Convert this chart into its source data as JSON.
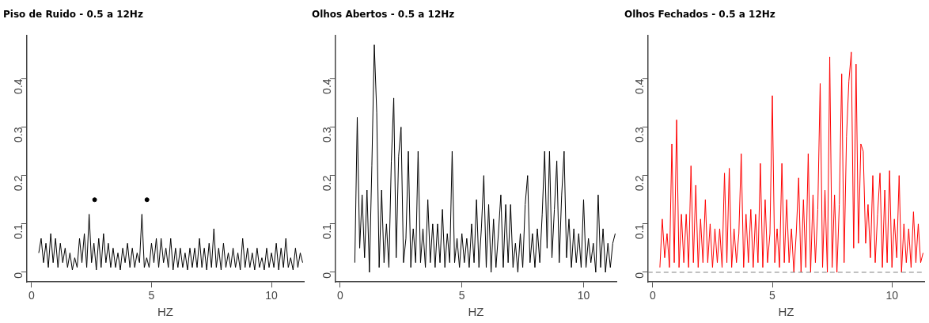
{
  "chart_data": [
    {
      "type": "line",
      "title": "Piso de Ruido - 0.5 a 12Hz",
      "xlabel": "HZ",
      "xlim": [
        -0.2,
        11.35
      ],
      "xticks": [
        0,
        5,
        10
      ],
      "ylim": [
        -0.02,
        0.49
      ],
      "yticks": [
        0.0,
        0.1,
        0.2,
        0.3,
        0.4
      ],
      "marker": "none",
      "x": [
        0.3,
        0.4,
        0.5,
        0.6,
        0.7,
        0.8,
        0.9,
        1.0,
        1.1,
        1.2,
        1.3,
        1.4,
        1.5,
        1.6,
        1.7,
        1.8,
        1.9,
        2.0,
        2.1,
        2.2,
        2.3,
        2.4,
        2.5,
        2.6,
        2.7,
        2.8,
        2.9,
        3.0,
        3.1,
        3.2,
        3.3,
        3.4,
        3.5,
        3.6,
        3.7,
        3.8,
        3.9,
        4.0,
        4.1,
        4.2,
        4.3,
        4.4,
        4.5,
        4.6,
        4.7,
        4.8,
        4.9,
        5.0,
        5.1,
        5.2,
        5.3,
        5.4,
        5.5,
        5.6,
        5.7,
        5.8,
        5.9,
        6.0,
        6.1,
        6.2,
        6.3,
        6.4,
        6.5,
        6.6,
        6.7,
        6.8,
        6.9,
        7.0,
        7.1,
        7.2,
        7.3,
        7.4,
        7.5,
        7.6,
        7.7,
        7.8,
        7.9,
        8.0,
        8.1,
        8.2,
        8.3,
        8.4,
        8.5,
        8.6,
        8.7,
        8.8,
        8.9,
        9.0,
        9.1,
        9.2,
        9.3,
        9.4,
        9.5,
        9.6,
        9.7,
        9.8,
        9.9,
        10.0,
        10.1,
        10.2,
        10.3,
        10.4,
        10.5,
        10.6,
        10.7,
        10.8,
        10.9,
        11.0,
        11.1,
        11.2,
        11.3
      ],
      "series": [
        {
          "color": "#000000",
          "values": [
            0.04,
            0.07,
            0.02,
            0.06,
            0.01,
            0.08,
            0.02,
            0.07,
            0.01,
            0.06,
            0.02,
            0.05,
            0.01,
            0.04,
            0.005,
            0.03,
            0.01,
            0.07,
            0.02,
            0.08,
            0.01,
            0.12,
            0.02,
            0.06,
            0.005,
            0.07,
            0.01,
            0.08,
            0.02,
            0.06,
            0.01,
            0.05,
            0.01,
            0.04,
            0.005,
            0.05,
            0.02,
            0.06,
            0.01,
            0.05,
            0.01,
            0.04,
            0.02,
            0.12,
            0.01,
            0.03,
            0.01,
            0.06,
            0.02,
            0.07,
            0.01,
            0.07,
            0.02,
            0.05,
            0.01,
            0.07,
            0.005,
            0.05,
            0.01,
            0.05,
            0.01,
            0.04,
            0.005,
            0.05,
            0.01,
            0.05,
            0.01,
            0.07,
            0.01,
            0.05,
            0.005,
            0.06,
            0.01,
            0.09,
            0.01,
            0.05,
            0.005,
            0.06,
            0.01,
            0.04,
            0.01,
            0.05,
            0.01,
            0.04,
            0.005,
            0.07,
            0.01,
            0.05,
            0.01,
            0.04,
            0.005,
            0.05,
            0.01,
            0.03,
            0.005,
            0.05,
            0.01,
            0.04,
            0.01,
            0.06,
            0.005,
            0.05,
            0.01,
            0.07,
            0.01,
            0.03,
            0.005,
            0.05,
            0.01,
            0.04,
            0.02
          ]
        },
        {
          "type": "scatter",
          "marker": "circle",
          "color": "#000000",
          "x": [
            2.63,
            4.81
          ],
          "values": [
            0.15,
            0.15
          ]
        }
      ]
    },
    {
      "type": "line",
      "title": "Olhos Abertos - 0.5 a 12Hz",
      "xlabel": "HZ",
      "xlim": [
        -0.2,
        11.35
      ],
      "xticks": [
        0,
        5,
        10
      ],
      "ylim": [
        -0.02,
        0.49
      ],
      "yticks": [
        0.0,
        0.1,
        0.2,
        0.3,
        0.4
      ],
      "marker": "none",
      "series": [
        {
          "color": "#000000",
          "x": [
            0.6,
            0.7,
            0.8,
            0.9,
            1.0,
            1.1,
            1.2,
            1.3,
            1.4,
            1.5,
            1.6,
            1.7,
            1.8,
            1.9,
            2.0,
            2.1,
            2.2,
            2.3,
            2.4,
            2.5,
            2.6,
            2.7,
            2.8,
            2.9,
            3.0,
            3.1,
            3.2,
            3.3,
            3.4,
            3.5,
            3.6,
            3.7,
            3.8,
            3.9,
            4.0,
            4.1,
            4.2,
            4.3,
            4.4,
            4.5,
            4.6,
            4.7,
            4.8,
            4.9,
            5.0,
            5.1,
            5.2,
            5.3,
            5.4,
            5.5,
            5.6,
            5.7,
            5.8,
            5.9,
            6.0,
            6.1,
            6.2,
            6.3,
            6.4,
            6.5,
            6.6,
            6.7,
            6.8,
            6.9,
            7.0,
            7.1,
            7.2,
            7.3,
            7.4,
            7.5,
            7.6,
            7.7,
            7.8,
            7.9,
            8.0,
            8.1,
            8.2,
            8.3,
            8.4,
            8.5,
            8.6,
            8.7,
            8.8,
            8.9,
            9.0,
            9.1,
            9.2,
            9.3,
            9.4,
            9.5,
            9.6,
            9.7,
            9.8,
            9.9,
            10.0,
            10.1,
            10.2,
            10.3,
            10.4,
            10.5,
            10.6,
            10.7,
            10.8,
            10.9,
            11.0,
            11.1,
            11.2,
            11.3
          ],
          "values": [
            0.02,
            0.32,
            0.05,
            0.16,
            0.03,
            0.17,
            0.0,
            0.22,
            0.47,
            0.33,
            0.01,
            0.17,
            0.02,
            0.1,
            0.01,
            0.23,
            0.36,
            0.03,
            0.24,
            0.3,
            0.02,
            0.07,
            0.25,
            0.01,
            0.09,
            0.02,
            0.25,
            0.02,
            0.09,
            0.01,
            0.15,
            0.02,
            0.1,
            0.01,
            0.1,
            0.02,
            0.13,
            0.01,
            0.08,
            0.02,
            0.25,
            0.02,
            0.07,
            0.01,
            0.08,
            0.02,
            0.07,
            0.01,
            0.1,
            0.02,
            0.15,
            0.01,
            0.09,
            0.2,
            0.01,
            0.14,
            0.0,
            0.11,
            0.01,
            0.08,
            0.16,
            0.01,
            0.14,
            0.02,
            0.14,
            0.01,
            0.06,
            0.0,
            0.08,
            0.01,
            0.14,
            0.2,
            0.02,
            0.08,
            0.01,
            0.09,
            0.02,
            0.12,
            0.25,
            0.05,
            0.25,
            0.03,
            0.13,
            0.23,
            0.02,
            0.16,
            0.25,
            0.03,
            0.11,
            0.01,
            0.09,
            0.02,
            0.08,
            0.01,
            0.15,
            0.01,
            0.07,
            0.02,
            0.06,
            0.0,
            0.16,
            0.01,
            0.09,
            0.0,
            0.06,
            0.01,
            0.06,
            0.08
          ]
        }
      ]
    },
    {
      "type": "line",
      "title": "Olhos Fechados - 0.5 a 12Hz",
      "xlabel": "HZ",
      "xlim": [
        -0.2,
        11.35
      ],
      "xticks": [
        0,
        5,
        10
      ],
      "ylim": [
        -0.02,
        0.49
      ],
      "yticks": [
        0.0,
        0.1,
        0.2,
        0.3,
        0.4
      ],
      "marker": "none",
      "ref_lines": [
        {
          "axis": "y",
          "value": 0,
          "color": "#808080",
          "line_style": "dashed"
        }
      ],
      "x": [
        0.3,
        0.4,
        0.5,
        0.6,
        0.7,
        0.8,
        0.9,
        1.0,
        1.1,
        1.2,
        1.3,
        1.4,
        1.5,
        1.6,
        1.7,
        1.8,
        1.9,
        2.0,
        2.1,
        2.2,
        2.3,
        2.4,
        2.5,
        2.6,
        2.7,
        2.8,
        2.9,
        3.0,
        3.1,
        3.2,
        3.3,
        3.4,
        3.5,
        3.6,
        3.7,
        3.8,
        3.9,
        4.0,
        4.1,
        4.2,
        4.3,
        4.4,
        4.5,
        4.6,
        4.7,
        4.8,
        4.9,
        5.0,
        5.1,
        5.2,
        5.3,
        5.4,
        5.5,
        5.6,
        5.7,
        5.8,
        5.9,
        6.0,
        6.1,
        6.2,
        6.3,
        6.4,
        6.5,
        6.6,
        6.7,
        6.8,
        6.9,
        7.0,
        7.1,
        7.2,
        7.3,
        7.4,
        7.5,
        7.6,
        7.7,
        7.8,
        7.9,
        8.0,
        8.1,
        8.2,
        8.3,
        8.4,
        8.5,
        8.6,
        8.7,
        8.8,
        8.9,
        9.0,
        9.1,
        9.2,
        9.3,
        9.4,
        9.5,
        9.6,
        9.7,
        9.8,
        9.9,
        10.0,
        10.1,
        10.2,
        10.3,
        10.4,
        10.5,
        10.6,
        10.7,
        10.8,
        10.9,
        11.0,
        11.1,
        11.2,
        11.3
      ],
      "series": [
        {
          "color": "#ff0000",
          "values": [
            0.01,
            0.11,
            0.03,
            0.08,
            0.01,
            0.265,
            0.02,
            0.315,
            0.01,
            0.12,
            0.02,
            0.12,
            0.01,
            0.22,
            0.02,
            0.18,
            0.01,
            0.11,
            0.02,
            0.15,
            0.02,
            0.1,
            0.01,
            0.09,
            0.02,
            0.09,
            0.01,
            0.205,
            0.02,
            0.215,
            0.01,
            0.09,
            0.02,
            0.08,
            0.245,
            0.01,
            0.12,
            0.02,
            0.13,
            0.01,
            0.12,
            0.02,
            0.225,
            0.01,
            0.15,
            0.02,
            0.08,
            0.365,
            0.02,
            0.09,
            0.01,
            0.225,
            0.02,
            0.15,
            0.02,
            0.09,
            0.0,
            0.08,
            0.195,
            0.0,
            0.15,
            0.01,
            0.245,
            0.0,
            0.16,
            0.02,
            0.13,
            0.39,
            0.01,
            0.17,
            0.0,
            0.445,
            0.01,
            0.16,
            0.0,
            0.14,
            0.41,
            0.02,
            0.28,
            0.395,
            0.455,
            0.05,
            0.43,
            0.06,
            0.265,
            0.25,
            0.06,
            0.14,
            0.03,
            0.2,
            0.02,
            0.12,
            0.205,
            0.01,
            0.17,
            0.02,
            0.21,
            0.01,
            0.11,
            0.03,
            0.2,
            0.0,
            0.1,
            0.02,
            0.09,
            0.01,
            0.125,
            0.02,
            0.1,
            0.02,
            0.04
          ]
        }
      ]
    }
  ]
}
